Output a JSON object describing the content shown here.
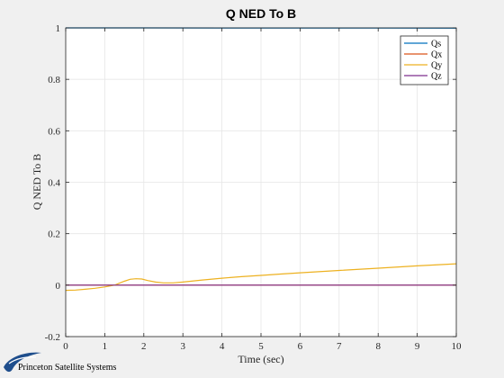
{
  "chart_data": {
    "type": "line",
    "title": "Q NED To B",
    "xlabel": "Time (sec)",
    "ylabel": "Q NED To B",
    "xlim": [
      0,
      10
    ],
    "ylim": [
      -0.2,
      1
    ],
    "xticks": [
      0,
      1,
      2,
      3,
      4,
      5,
      6,
      7,
      8,
      9,
      10
    ],
    "yticks": [
      -0.2,
      0,
      0.2,
      0.4,
      0.6,
      0.8,
      1
    ],
    "grid": true,
    "legend_position": "top-right",
    "series": [
      {
        "name": "Qs",
        "color": "#0072BD",
        "x": [
          0,
          2,
          4,
          6,
          8,
          10
        ],
        "y": [
          1.0,
          1.0,
          0.9998,
          0.9996,
          0.9993,
          0.999
        ]
      },
      {
        "name": "Qx",
        "color": "#D95319",
        "x": [
          0,
          10
        ],
        "y": [
          0,
          0
        ]
      },
      {
        "name": "Qy",
        "color": "#EDB120",
        "x": [
          0,
          0.25,
          0.5,
          0.75,
          1.0,
          1.25,
          1.5,
          1.65,
          1.8,
          1.95,
          2.1,
          2.3,
          2.5,
          2.75,
          3.0,
          3.5,
          4.0,
          4.5,
          5.0,
          5.5,
          6.0,
          7.0,
          8.0,
          9.0,
          10.0
        ],
        "y": [
          -0.02,
          -0.019,
          -0.016,
          -0.012,
          -0.007,
          0.0,
          0.015,
          0.023,
          0.025,
          0.024,
          0.018,
          0.012,
          0.009,
          0.009,
          0.012,
          0.02,
          0.027,
          0.033,
          0.038,
          0.043,
          0.048,
          0.057,
          0.066,
          0.075,
          0.083
        ]
      },
      {
        "name": "Qz",
        "color": "#7E2F8E",
        "x": [
          0,
          10
        ],
        "y": [
          0,
          0
        ]
      }
    ]
  },
  "logo": {
    "text": "Princeton Satellite Systems",
    "color": "#1f4e8c"
  }
}
